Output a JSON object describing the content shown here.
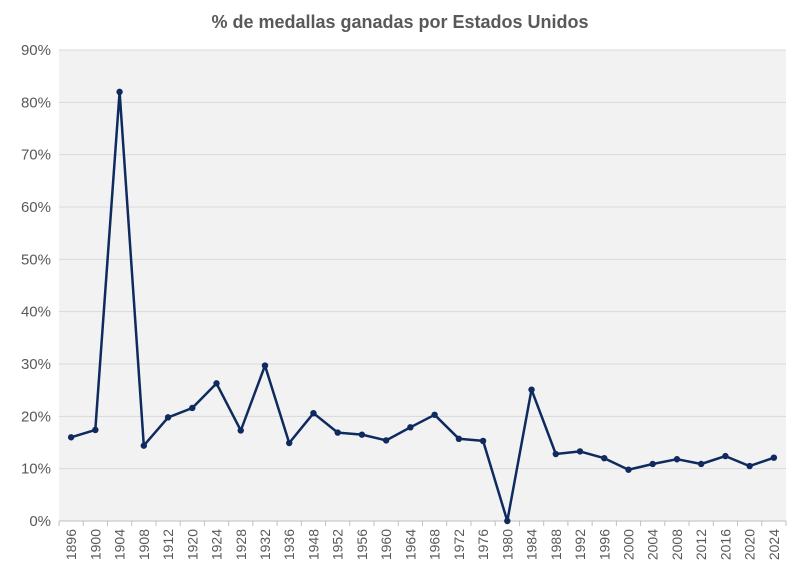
{
  "chart_data": {
    "type": "line",
    "title": "% de medallas ganadas por Estados Unidos",
    "xlabel": "",
    "ylabel": "",
    "ylim": [
      0,
      90
    ],
    "y_ticks": [
      "0%",
      "10%",
      "20%",
      "30%",
      "40%",
      "50%",
      "60%",
      "70%",
      "80%",
      "90%"
    ],
    "categories": [
      "1896",
      "1900",
      "1904",
      "1908",
      "1912",
      "1920",
      "1924",
      "1928",
      "1932",
      "1936",
      "1948",
      "1952",
      "1956",
      "1960",
      "1964",
      "1968",
      "1972",
      "1976",
      "1980",
      "1984",
      "1988",
      "1992",
      "1996",
      "2000",
      "2004",
      "2008",
      "2012",
      "2016",
      "2020",
      "2024"
    ],
    "series": [
      {
        "name": "% de medallas ganadas por Estados Unidos",
        "values": [
          16.0,
          17.4,
          82.0,
          14.4,
          19.8,
          21.6,
          26.3,
          17.3,
          29.7,
          14.9,
          20.6,
          16.9,
          16.5,
          15.4,
          17.9,
          20.3,
          15.7,
          15.3,
          0.0,
          25.1,
          12.8,
          13.3,
          12.0,
          9.8,
          10.9,
          11.8,
          10.9,
          12.4,
          10.5,
          12.1
        ],
        "color": "#0e2a5e"
      }
    ],
    "grid": true,
    "legend": "none",
    "plot_background": "#f2f2f2",
    "gridline_color": "#d9d9d9"
  }
}
